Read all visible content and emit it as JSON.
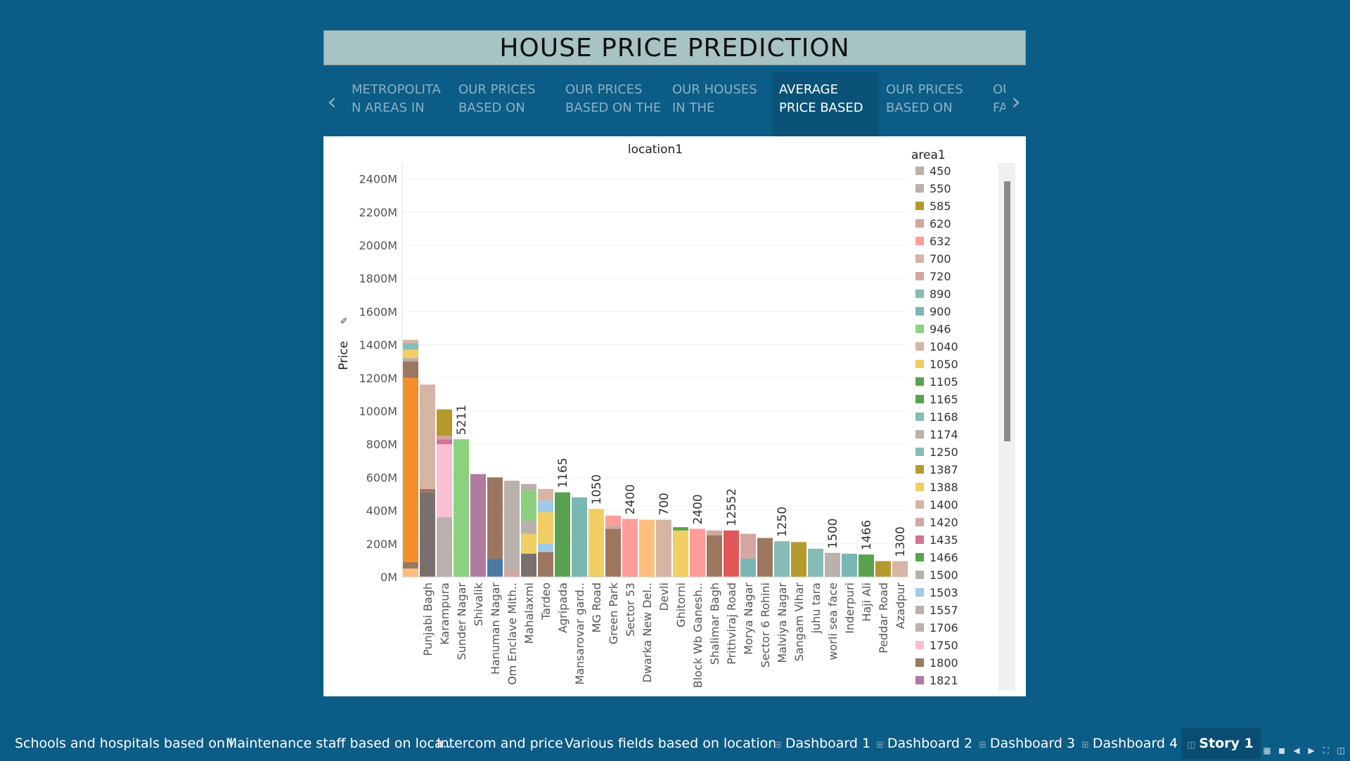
{
  "story": {
    "title": "HOUSE PRICE PREDICTION",
    "points": [
      {
        "line1": "METROPOLITA",
        "line2": "N AREAS IN",
        "active": false
      },
      {
        "line1": "OUR PRICES",
        "line2": "BASED ON",
        "active": false
      },
      {
        "line1": "OUR PRICES",
        "line2": "BASED ON THE",
        "active": false
      },
      {
        "line1": "OUR HOUSES",
        "line2": "IN THE",
        "active": false
      },
      {
        "line1": "AVERAGE",
        "line2": "PRICE BASED",
        "active": true
      },
      {
        "line1": "OUR PRICES",
        "line2": "BASED ON",
        "active": false
      },
      {
        "line1": "OU",
        "line2": "FA",
        "active": false
      }
    ],
    "prev_icon": "chevron-left-icon",
    "next_icon": "chevron-right-icon"
  },
  "colors": {
    "background": "#0b5c86",
    "title_bar": "#a8c3c3",
    "inactive_nav_text": "#8db1c4",
    "active_nav_bg": "#0a5277"
  },
  "chart_data": {
    "type": "bar",
    "stacked": true,
    "title": "location1",
    "ylabel": "Price",
    "ylim": [
      0,
      2500000000
    ],
    "yticks": [
      0,
      200000000,
      400000000,
      600000000,
      800000000,
      1000000000,
      1200000000,
      1400000000,
      1600000000,
      1800000000,
      2000000000,
      2200000000,
      2400000000
    ],
    "ytick_labels": [
      "0M",
      "200M",
      "400M",
      "600M",
      "800M",
      "1000M",
      "1200M",
      "1400M",
      "1600M",
      "1800M",
      "2000M",
      "2200M",
      "2400M"
    ],
    "grid": true,
    "legend_title": "area1",
    "legend_position": "right",
    "legend": [
      {
        "label": "450",
        "color": "#bab0ac"
      },
      {
        "label": "550",
        "color": "#bab0ac"
      },
      {
        "label": "585",
        "color": "#b6992d"
      },
      {
        "label": "620",
        "color": "#d4a6a1"
      },
      {
        "label": "632",
        "color": "#ff9d9a"
      },
      {
        "label": "700",
        "color": "#d7b5a6"
      },
      {
        "label": "720",
        "color": "#d4a6a1"
      },
      {
        "label": "890",
        "color": "#86bcb6"
      },
      {
        "label": "900",
        "color": "#79b7b2"
      },
      {
        "label": "946",
        "color": "#8cd17d"
      },
      {
        "label": "1040",
        "color": "#d7b5a6"
      },
      {
        "label": "1050",
        "color": "#f1ce63"
      },
      {
        "label": "1105",
        "color": "#59a14f"
      },
      {
        "label": "1165",
        "color": "#59a14f"
      },
      {
        "label": "1168",
        "color": "#86bcb6"
      },
      {
        "label": "1174",
        "color": "#bab0ac"
      },
      {
        "label": "1250",
        "color": "#86bcb6"
      },
      {
        "label": "1387",
        "color": "#b6992d"
      },
      {
        "label": "1388",
        "color": "#f1ce63"
      },
      {
        "label": "1400",
        "color": "#d7b5a6"
      },
      {
        "label": "1420",
        "color": "#d4a6a1"
      },
      {
        "label": "1435",
        "color": "#d37295"
      },
      {
        "label": "1466",
        "color": "#59a14f"
      },
      {
        "label": "1500",
        "color": "#bab0ac"
      },
      {
        "label": "1503",
        "color": "#a0cbe8"
      },
      {
        "label": "1557",
        "color": "#bab0ac"
      },
      {
        "label": "1706",
        "color": "#bab0ac"
      },
      {
        "label": "1750",
        "color": "#fabfd2"
      },
      {
        "label": "1800",
        "color": "#9d7660"
      },
      {
        "label": "1821",
        "color": "#b07aa1"
      }
    ],
    "categories": [
      "",
      "Punjabi Bagh",
      "Karampura",
      "Sunder Nagar",
      "Shivalik",
      "Hanuman Nagar",
      "Om Enclave Mith..",
      "Mahalaxmi",
      "Tardeo",
      "Agripada",
      "Mansarovar gard..",
      "MG Road",
      "Green Park",
      "Sector 53",
      "Dwarka New Del..",
      "Devli",
      "Ghitorni",
      "Block Wb Ganesh..",
      "Shalimar Bagh",
      "Prithviraj Road",
      "Morya Nagar",
      "Sector 6 Rohini",
      "Malviya Nagar",
      "Sangam Vihar",
      "juhu tara",
      "worli sea face",
      "Inderpuri",
      "Haji Ali",
      "Peddar Road",
      "Azadpur"
    ],
    "bar_labels": [
      "",
      "",
      "",
      "5211",
      "",
      "",
      "",
      "",
      "",
      "1165",
      "",
      "1050",
      "",
      "2400",
      "",
      "700",
      "",
      "2400",
      "",
      "12552",
      "",
      "",
      "1250",
      "",
      "",
      "1500",
      "",
      "1466",
      "",
      "1300"
    ],
    "stacks": [
      [
        {
          "v": 50000000,
          "c": "#ffbe7d"
        },
        {
          "v": 40000000,
          "c": "#9d7660"
        },
        {
          "v": 1110000000,
          "c": "#f28e2b"
        },
        {
          "v": 100000000,
          "c": "#9d7660"
        },
        {
          "v": 20000000,
          "c": "#bab0ac"
        },
        {
          "v": 50000000,
          "c": "#f1ce63"
        },
        {
          "v": 40000000,
          "c": "#86bcb6"
        },
        {
          "v": 20000000,
          "c": "#d7b5a6"
        }
      ],
      [
        {
          "v": 510000000,
          "c": "#79706e"
        },
        {
          "v": 20000000,
          "c": "#9d7660"
        },
        {
          "v": 630000000,
          "c": "#d7b5a6"
        }
      ],
      [
        {
          "v": 360000000,
          "c": "#bab0ac"
        },
        {
          "v": 440000000,
          "c": "#fabfd2"
        },
        {
          "v": 30000000,
          "c": "#d37295"
        },
        {
          "v": 20000000,
          "c": "#d4a6a1"
        },
        {
          "v": 160000000,
          "c": "#b6992d"
        }
      ],
      [
        {
          "v": 830000000,
          "c": "#8cd17d"
        }
      ],
      [
        {
          "v": 620000000,
          "c": "#b07aa1"
        }
      ],
      [
        {
          "v": 110000000,
          "c": "#4e79a7"
        },
        {
          "v": 490000000,
          "c": "#9d7660"
        }
      ],
      [
        {
          "v": 40000000,
          "c": "#d4a6a1"
        },
        {
          "v": 540000000,
          "c": "#bab0ac"
        }
      ],
      [
        {
          "v": 140000000,
          "c": "#79706e"
        },
        {
          "v": 120000000,
          "c": "#f1ce63"
        },
        {
          "v": 80000000,
          "c": "#bab0ac"
        },
        {
          "v": 180000000,
          "c": "#8cd17d"
        },
        {
          "v": 40000000,
          "c": "#bab0ac"
        }
      ],
      [
        {
          "v": 150000000,
          "c": "#9d7660"
        },
        {
          "v": 50000000,
          "c": "#a0cbe8"
        },
        {
          "v": 190000000,
          "c": "#f1ce63"
        },
        {
          "v": 70000000,
          "c": "#a0cbe8"
        },
        {
          "v": 70000000,
          "c": "#d7b5a6"
        }
      ],
      [
        {
          "v": 510000000,
          "c": "#59a14f"
        }
      ],
      [
        {
          "v": 480000000,
          "c": "#79b7b2"
        }
      ],
      [
        {
          "v": 410000000,
          "c": "#f1ce63"
        }
      ],
      [
        {
          "v": 290000000,
          "c": "#9d7660"
        },
        {
          "v": 20000000,
          "c": "#d4a6a1"
        },
        {
          "v": 60000000,
          "c": "#ff9d9a"
        }
      ],
      [
        {
          "v": 350000000,
          "c": "#ff9d9a"
        }
      ],
      [
        {
          "v": 345000000,
          "c": "#ffbe7d"
        }
      ],
      [
        {
          "v": 345000000,
          "c": "#d7b5a6"
        }
      ],
      [
        {
          "v": 280000000,
          "c": "#f1ce63"
        },
        {
          "v": 20000000,
          "c": "#59a14f"
        }
      ],
      [
        {
          "v": 290000000,
          "c": "#ff9d9a"
        }
      ],
      [
        {
          "v": 250000000,
          "c": "#9d7660"
        },
        {
          "v": 30000000,
          "c": "#d4a6a1"
        }
      ],
      [
        {
          "v": 280000000,
          "c": "#e15759"
        }
      ],
      [
        {
          "v": 110000000,
          "c": "#79b7b2"
        },
        {
          "v": 150000000,
          "c": "#d4a6a1"
        }
      ],
      [
        {
          "v": 235000000,
          "c": "#9d7660"
        }
      ],
      [
        {
          "v": 215000000,
          "c": "#86bcb6"
        }
      ],
      [
        {
          "v": 210000000,
          "c": "#b6992d"
        }
      ],
      [
        {
          "v": 170000000,
          "c": "#86bcb6"
        }
      ],
      [
        {
          "v": 145000000,
          "c": "#bab0ac"
        }
      ],
      [
        {
          "v": 140000000,
          "c": "#79b7b2"
        }
      ],
      [
        {
          "v": 135000000,
          "c": "#59a14f"
        }
      ],
      [
        {
          "v": 95000000,
          "c": "#b6992d"
        }
      ],
      [
        {
          "v": 95000000,
          "c": "#d7b5a6"
        }
      ]
    ]
  },
  "sheet_tabs": [
    {
      "label": "Schools and hospitals based on l...",
      "icon": "",
      "active": false
    },
    {
      "label": "Maintenance staff based on loca...",
      "icon": "",
      "active": false
    },
    {
      "label": "Intercom and price",
      "icon": "",
      "active": false
    },
    {
      "label": "Various fields based on location",
      "icon": "",
      "active": false
    },
    {
      "label": "Dashboard 1",
      "icon": "dashboard-icon",
      "active": false
    },
    {
      "label": "Dashboard 2",
      "icon": "dashboard-icon",
      "active": false
    },
    {
      "label": "Dashboard 3",
      "icon": "dashboard-icon",
      "active": false
    },
    {
      "label": "Dashboard 4",
      "icon": "dashboard-icon",
      "active": false
    },
    {
      "label": "Story 1",
      "icon": "story-icon",
      "active": true
    }
  ],
  "toolbar_icons": [
    "grid-view-icon",
    "filmstrip-icon",
    "previous-sheet-icon",
    "next-sheet-icon",
    "fullscreen-icon",
    "presentation-icon"
  ]
}
